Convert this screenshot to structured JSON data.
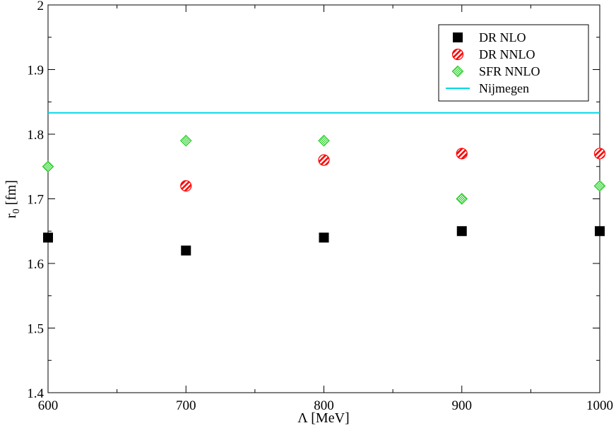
{
  "chart_data": {
    "type": "scatter",
    "xlabel": "Λ [MeV]",
    "ylabel_main": "r",
    "ylabel_sub": "0",
    "ylabel_unit": " [fm]",
    "xlim": [
      600,
      1000
    ],
    "ylim": [
      1.4,
      2.0
    ],
    "xticks": [
      600,
      700,
      800,
      900,
      1000
    ],
    "xtick_labels": [
      "600",
      "700",
      "800",
      "900",
      "1000"
    ],
    "yticks": [
      1.4,
      1.5,
      1.6,
      1.7,
      1.8,
      1.9,
      2.0
    ],
    "ytick_labels": [
      "1.4",
      "1.5",
      "1.6",
      "1.7",
      "1.8",
      "1.9",
      "2"
    ],
    "legend_position": "top-right",
    "series": [
      {
        "name": "DR NLO",
        "marker": "square",
        "color": "#000000",
        "x": [
          600,
          700,
          800,
          900,
          1000
        ],
        "y": [
          1.64,
          1.62,
          1.64,
          1.65,
          1.65
        ]
      },
      {
        "name": "DR NNLO",
        "marker": "circle-hatched",
        "color": "#ff0000",
        "x": [
          700,
          800,
          900,
          1000
        ],
        "y": [
          1.72,
          1.76,
          1.77,
          1.77
        ]
      },
      {
        "name": "SFR NNLO",
        "marker": "diamond-checkered",
        "color": "#00cc00",
        "x": [
          600,
          700,
          800,
          900,
          1000
        ],
        "y": [
          1.75,
          1.79,
          1.79,
          1.7,
          1.72
        ]
      },
      {
        "name": "Nijmegen",
        "marker": "line",
        "color": "#00d8e8",
        "y": 1.833
      }
    ]
  }
}
